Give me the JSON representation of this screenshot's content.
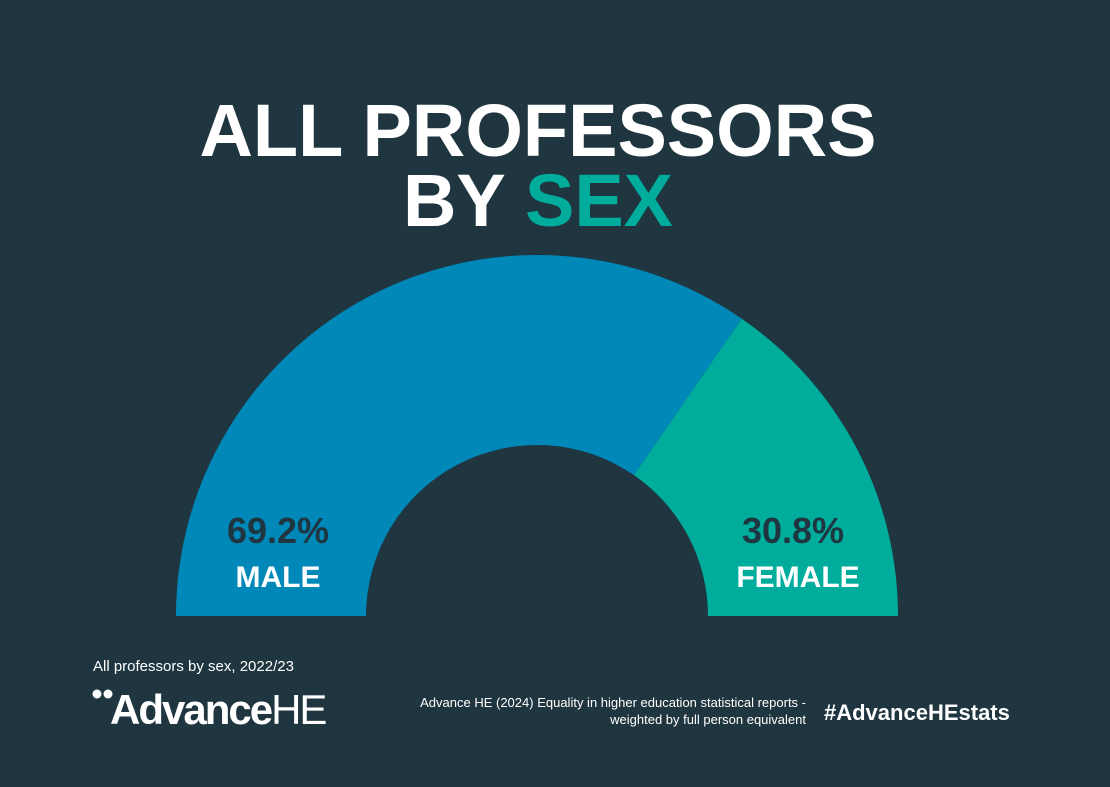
{
  "chart_data": {
    "type": "pie",
    "title": {
      "line1": "ALL PROFESSORS",
      "line2": "BY",
      "highlight": "SEX"
    },
    "categories": [
      "MALE",
      "FEMALE"
    ],
    "values": [
      69.2,
      30.8
    ],
    "value_labels": [
      "69.2%",
      "30.8%"
    ],
    "colors": [
      "#0088b8",
      "#00ac9c"
    ],
    "caption": "All professors by sex, 2022/23"
  },
  "footer": {
    "logo_main": "Advance",
    "logo_suffix": "HE",
    "source_line1": "Advance HE (2024) Equality in higher education statistical reports -",
    "source_line2": "weighted by full person equivalent",
    "hashtag": "#AdvanceHEstats"
  }
}
